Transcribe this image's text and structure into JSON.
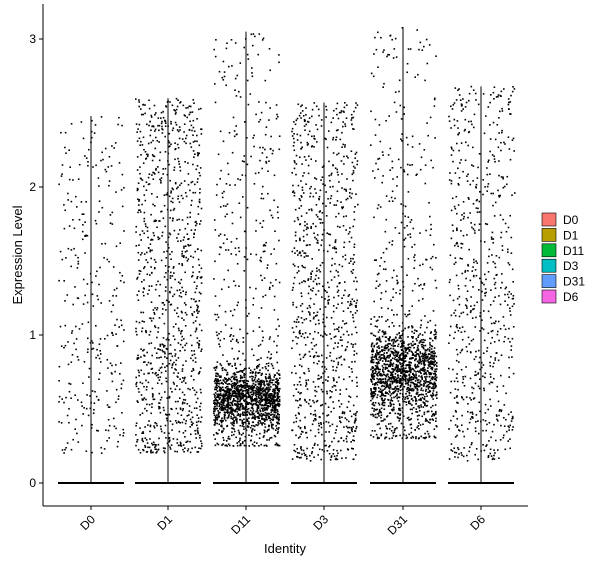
{
  "chart_data": {
    "type": "violin",
    "style": "jittered-points",
    "title": "",
    "xlabel": "Identity",
    "ylabel": "Expression Level",
    "ylim": [
      -0.18,
      3.26
    ],
    "yticks": [
      0,
      1,
      2,
      3
    ],
    "grid": false,
    "legend_position": "right",
    "categories": [
      "D0",
      "D1",
      "D11",
      "D3",
      "D31",
      "D6"
    ],
    "groups": [
      {
        "name": "D0",
        "color": "#F8766D",
        "max": 2.48,
        "n_points": 300,
        "nonzero_density": "sparse",
        "bulk_range": [
          0.2,
          2.45
        ]
      },
      {
        "name": "D1",
        "color": "#B79F00",
        "max": 2.6,
        "n_points": 1000,
        "nonzero_density": "medium",
        "bulk_range": [
          0.2,
          2.4
        ]
      },
      {
        "name": "D11",
        "color": "#00BA38",
        "max": 3.05,
        "n_points": 1700,
        "nonzero_density": "dense",
        "bulk_range": [
          0.25,
          0.9
        ]
      },
      {
        "name": "D3",
        "color": "#00BFC4",
        "max": 2.57,
        "n_points": 900,
        "nonzero_density": "medium",
        "bulk_range": [
          0.15,
          2.1
        ]
      },
      {
        "name": "D31",
        "color": "#619CFF",
        "max": 3.08,
        "n_points": 1700,
        "nonzero_density": "dense",
        "bulk_range": [
          0.3,
          1.2
        ]
      },
      {
        "name": "D6",
        "color": "#F564E3",
        "max": 2.68,
        "n_points": 650,
        "nonzero_density": "medium",
        "bulk_range": [
          0.15,
          2.0
        ]
      }
    ]
  }
}
